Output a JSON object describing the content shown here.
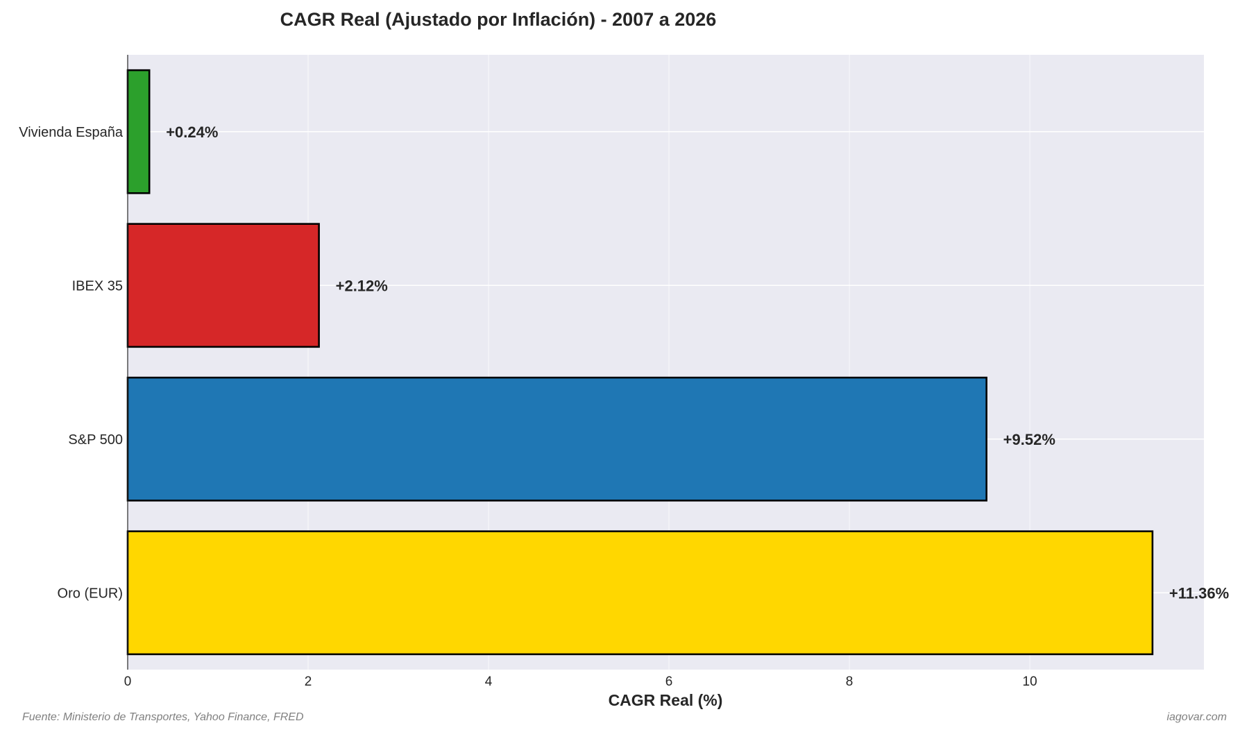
{
  "chart_data": {
    "type": "bar",
    "orientation": "horizontal",
    "title": "CAGR Real (Ajustado por Inflación) - 2007 a 2026",
    "xlabel": "CAGR Real (%)",
    "ylabel": "",
    "categories": [
      "Vivienda España",
      "IBEX 35",
      "S&P 500",
      "Oro (EUR)"
    ],
    "values": [
      0.24,
      2.12,
      9.52,
      11.36
    ],
    "value_labels": [
      "+0.24%",
      "+2.12%",
      "+9.52%",
      "+11.36%"
    ],
    "colors": [
      "#2ca02c",
      "#d62728",
      "#1f77b4",
      "#ffd700"
    ],
    "xlim": [
      0,
      11.93
    ],
    "xticks": [
      0,
      2,
      4,
      6,
      8,
      10
    ],
    "xtick_labels": [
      "0",
      "2",
      "4",
      "6",
      "8",
      "10"
    ],
    "grid": true,
    "legend": "none"
  },
  "footer": {
    "source": "Fuente: Ministerio de Transportes, Yahoo Finance, FRED",
    "credit": "iagovar.com"
  }
}
